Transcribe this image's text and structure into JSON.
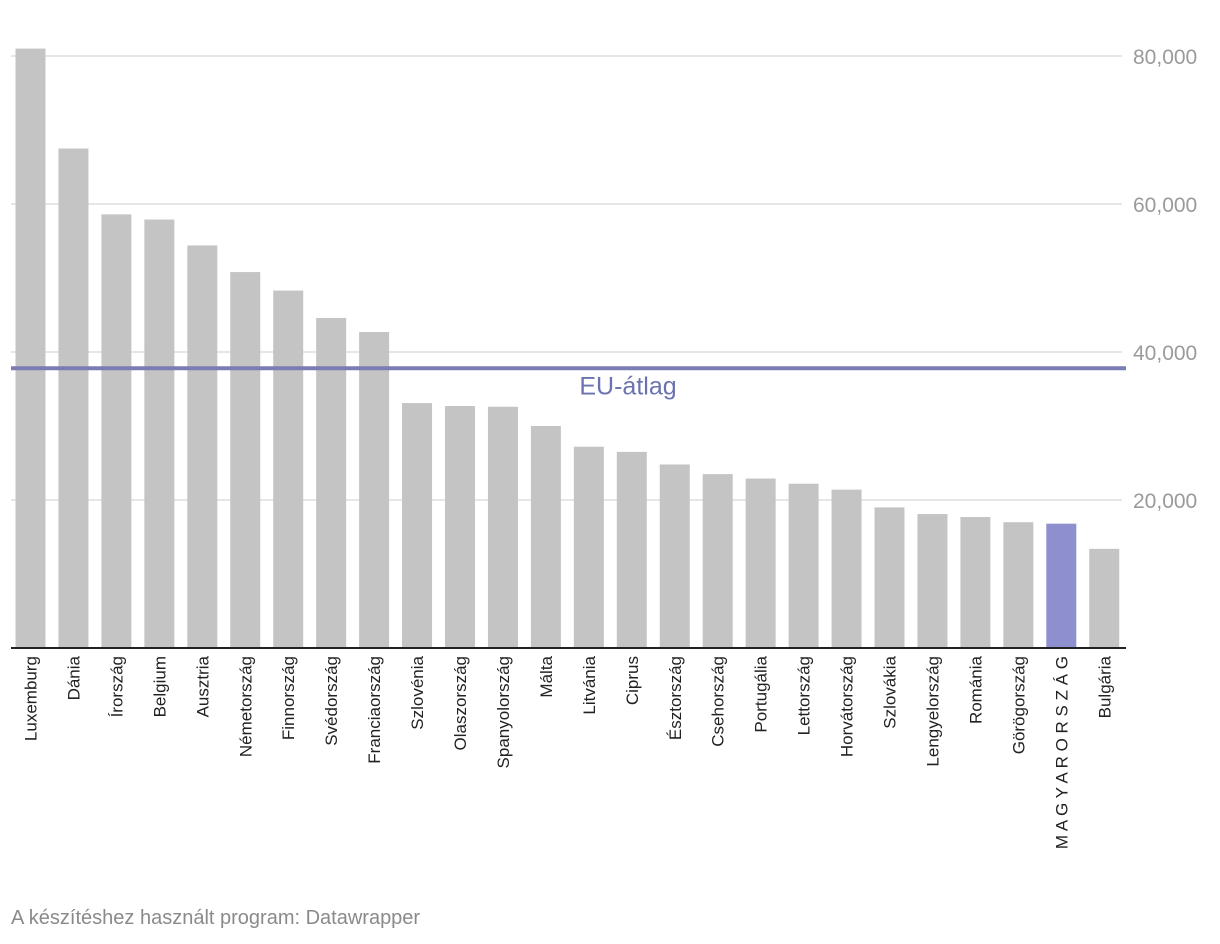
{
  "chart_data": {
    "type": "bar",
    "categories": [
      "Luxemburg",
      "Dánia",
      "Írország",
      "Belgium",
      "Ausztria",
      "Németország",
      "Finnország",
      "Svédország",
      "Franciaország",
      "Szlovénia",
      "Olaszország",
      "Spanyolország",
      "Málta",
      "Litvánia",
      "Ciprus",
      "Észtország",
      "Csehország",
      "Portugália",
      "Lettország",
      "Horvátország",
      "Szlovákia",
      "Lengyelország",
      "Románia",
      "Görögország",
      "M A G Y A R O R S Z Á G",
      "Bulgária"
    ],
    "values": [
      81000,
      67500,
      58600,
      57900,
      54400,
      50800,
      48300,
      44600,
      42700,
      33100,
      32700,
      32600,
      30000,
      27200,
      26500,
      24800,
      23500,
      22900,
      22200,
      21400,
      19000,
      18100,
      17700,
      17000,
      16800,
      13400
    ],
    "highlight_category": "M A G Y A R O R S Z Á G",
    "ylim": [
      0,
      80000
    ],
    "yticks": [
      "20,000",
      "40,000",
      "60,000",
      "80,000"
    ],
    "ytick_values": [
      20000,
      40000,
      60000,
      80000
    ],
    "y_axis_side": "right",
    "grid": true,
    "reference_line": {
      "label": "EU-átlag",
      "value": 37800
    },
    "colors": {
      "bar": "#c4c4c4",
      "highlight": "#8e8fcf",
      "reference_line": "#7a7db3",
      "reference_label": "#6a73b0",
      "grid": "#dddddd"
    }
  },
  "footer": "A készítéshez használt program: Datawrapper"
}
